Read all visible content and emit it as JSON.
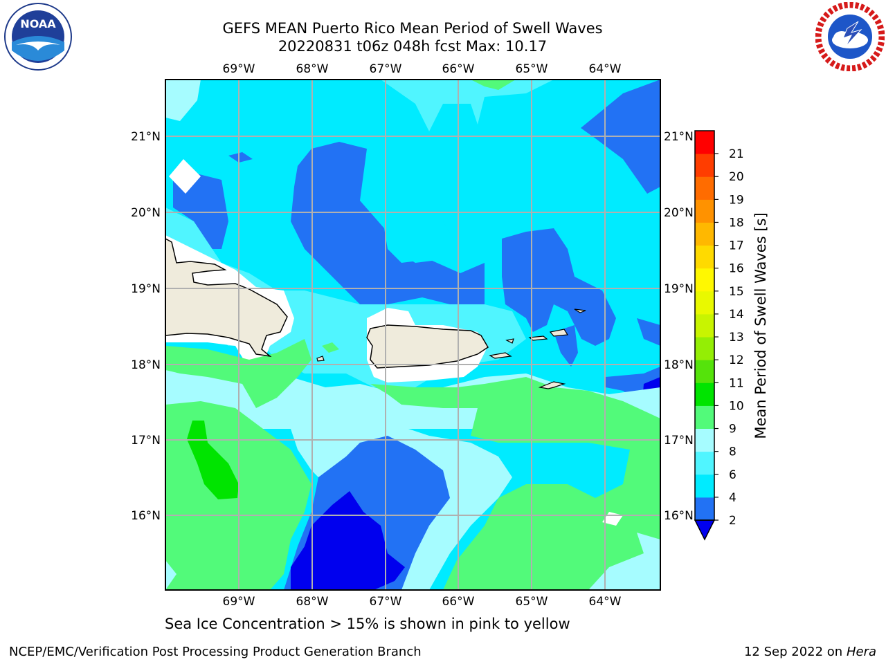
{
  "title": {
    "line1": "GEFS MEAN Puerto Rico Mean Period of Swell Waves",
    "line2": "20220831 t06z 048h fcst   Max: 10.17"
  },
  "logos": {
    "left": {
      "name": "noaa-logo",
      "text": "NOAA",
      "ring_text": "NATIONAL OCEANIC AND ATMOSPHERIC ADMINISTRATION · U.S. DEPARTMENT OF COMMERCE"
    },
    "right": {
      "name": "nws-logo",
      "ring_text": "NATIONAL WEATHER SERVICE"
    }
  },
  "map": {
    "lon_labels": [
      "69°W",
      "68°W",
      "67°W",
      "66°W",
      "65°W",
      "64°W"
    ],
    "lat_labels": [
      "21°N",
      "20°N",
      "19°N",
      "18°N",
      "17°N",
      "16°N"
    ],
    "gridlines": true,
    "land_color": "#efebdc",
    "coastline_color": "#000000"
  },
  "colorbar": {
    "label": "Mean Period of Swell Waves [s]",
    "ticks": [
      "2",
      "4",
      "6",
      "8",
      "9",
      "10",
      "11",
      "12",
      "13",
      "14",
      "15",
      "16",
      "17",
      "18",
      "19",
      "20",
      "21"
    ],
    "colors": [
      "#2272f4",
      "#00ebff",
      "#50f5ff",
      "#a6fcff",
      "#52fa7a",
      "#00e400",
      "#55e30b",
      "#94ee05",
      "#c8f401",
      "#e9f900",
      "#fff801",
      "#ffda00",
      "#ffb800",
      "#ff9200",
      "#ff6c00",
      "#ff3d00",
      "#ff0000"
    ],
    "extend_color": "#0000ee",
    "extend": "min"
  },
  "note": "Sea Ice Concentration > 15% is shown in pink to yellow",
  "footer": {
    "left": "NCEP/EMC/Verification Post Processing Product Generation Branch",
    "right_date": "12 Sep 2022 on",
    "right_host": "Hera"
  }
}
